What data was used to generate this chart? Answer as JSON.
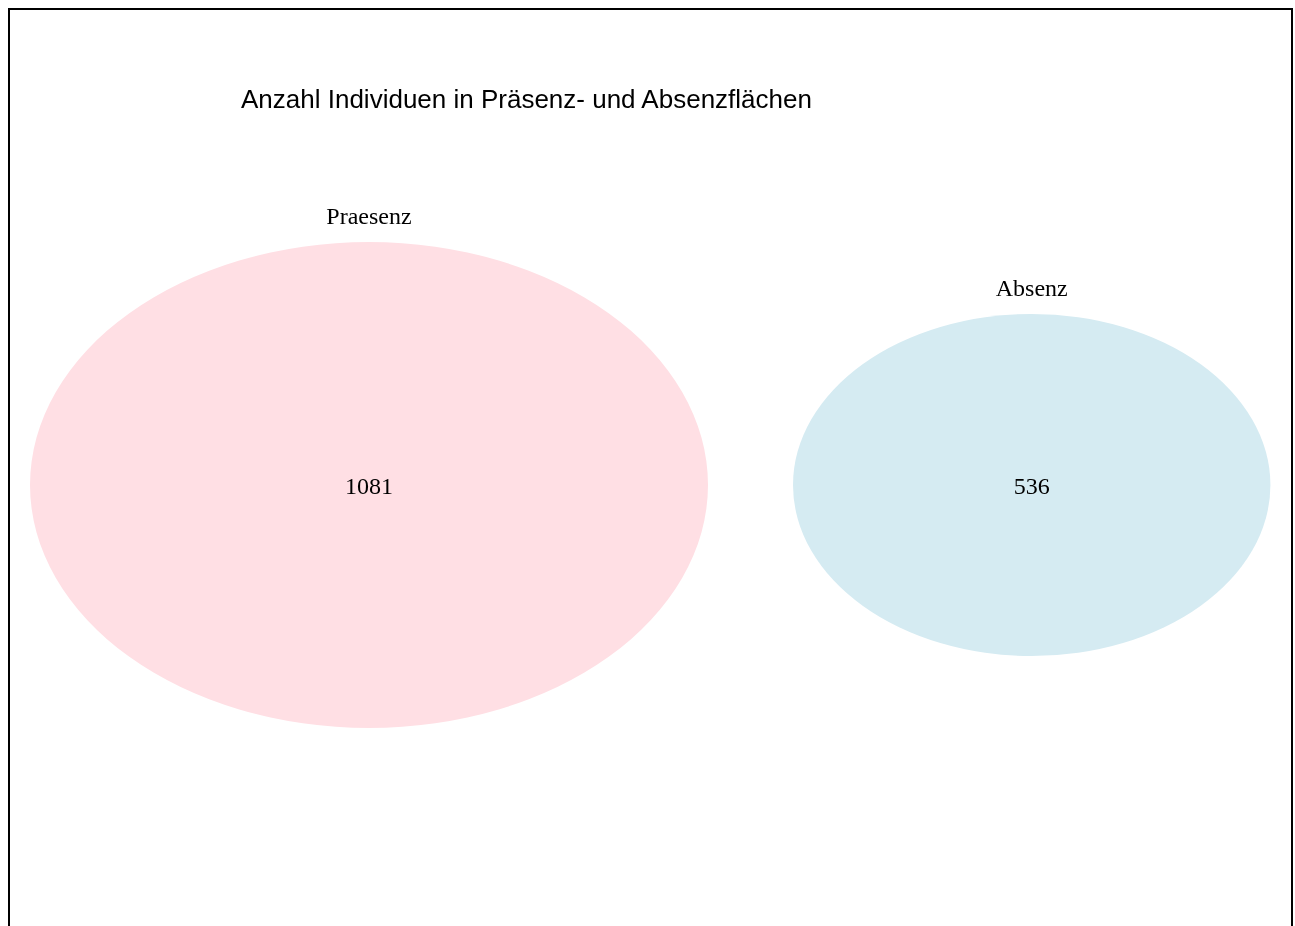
{
  "chart_data": {
    "type": "other",
    "title": "Anzahl Individuen in Präsenz- und Absenzflächen",
    "categories": [
      "Praesenz",
      "Absenz"
    ],
    "values": [
      1081,
      536
    ],
    "colors": [
      "#ffdfe4",
      "#d5ebf2"
    ],
    "data_labels": true
  }
}
